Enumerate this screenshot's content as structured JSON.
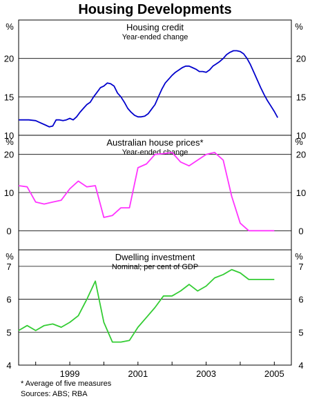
{
  "title": "Housing Developments",
  "footnote": "*   Average of five measures",
  "sources": "Sources: ABS; RBA",
  "x_ticks": [
    "1999",
    "2001",
    "2003",
    "2005"
  ],
  "chart_data": [
    {
      "type": "line",
      "title": "Housing credit",
      "subtitle": "Year-ended change",
      "unit": "%",
      "ylim": [
        10,
        25
      ],
      "y_ticks": [
        10,
        15,
        20
      ],
      "color": "#0000cc",
      "x_range": [
        1997.5,
        2005.5
      ],
      "series": [
        {
          "x": [
            1997.5,
            1997.6,
            1997.8,
            1998.0,
            1998.1,
            1998.3,
            1998.4,
            1998.5,
            1998.6,
            1998.7,
            1998.8,
            1998.9,
            1999.0,
            1999.1,
            1999.2,
            1999.3,
            1999.4,
            1999.5,
            1999.6,
            1999.7,
            1999.8,
            1999.9,
            2000.0,
            2000.1,
            2000.2,
            2000.3,
            2000.4,
            2000.5,
            2000.6,
            2000.7,
            2000.8,
            2000.9,
            2001.0,
            2001.1,
            2001.2,
            2001.3,
            2001.4,
            2001.5,
            2001.6,
            2001.7,
            2001.8,
            2001.9,
            2002.0,
            2002.1,
            2002.2,
            2002.3,
            2002.4,
            2002.5,
            2002.6,
            2002.7,
            2002.8,
            2002.9,
            2003.0,
            2003.1,
            2003.2,
            2003.3,
            2003.4,
            2003.5,
            2003.6,
            2003.7,
            2003.8,
            2003.9,
            2004.0,
            2004.1,
            2004.2,
            2004.3,
            2004.4,
            2004.5,
            2004.6,
            2004.7,
            2004.8,
            2004.9,
            2005.0,
            2005.1
          ],
          "y": [
            12.0,
            12.0,
            12.0,
            11.9,
            11.7,
            11.3,
            11.1,
            11.2,
            12.0,
            12.0,
            11.9,
            12.0,
            12.2,
            12.0,
            12.4,
            13.0,
            13.5,
            14.0,
            14.3,
            15.0,
            15.6,
            16.2,
            16.4,
            16.8,
            16.7,
            16.4,
            15.5,
            15.0,
            14.3,
            13.5,
            13.0,
            12.6,
            12.4,
            12.4,
            12.5,
            12.8,
            13.4,
            14.0,
            15.0,
            16.0,
            16.8,
            17.3,
            17.8,
            18.2,
            18.5,
            18.8,
            19.0,
            19.0,
            18.8,
            18.6,
            18.3,
            18.3,
            18.2,
            18.5,
            19.0,
            19.3,
            19.6,
            20.0,
            20.5,
            20.8,
            21.0,
            21.0,
            20.9,
            20.6,
            20.0,
            19.2,
            18.2,
            17.2,
            16.2,
            15.3,
            14.5,
            13.8,
            13.1,
            12.3
          ]
        }
      ]
    },
    {
      "type": "line",
      "title": "Australian house prices*",
      "subtitle": "Year-ended change",
      "unit": "%",
      "ylim": [
        -5,
        25
      ],
      "y_ticks": [
        0,
        10,
        20
      ],
      "color": "#ff33ff",
      "x_range": [
        1997.5,
        2005.5
      ],
      "series": [
        {
          "x": [
            1997.5,
            1997.75,
            1998.0,
            1998.25,
            1998.5,
            1998.75,
            1999.0,
            1999.25,
            1999.5,
            1999.75,
            2000.0,
            2000.25,
            2000.5,
            2000.75,
            2001.0,
            2001.25,
            2001.5,
            2001.75,
            2002.0,
            2002.25,
            2002.5,
            2002.75,
            2003.0,
            2003.25,
            2003.5,
            2003.75,
            2004.0,
            2004.25,
            2004.5,
            2004.75,
            2005.0
          ],
          "y": [
            11.8,
            11.5,
            7.5,
            7.0,
            7.5,
            8.0,
            11.0,
            13.0,
            11.5,
            11.8,
            3.5,
            4.0,
            6.0,
            6.0,
            16.5,
            17.5,
            20.0,
            20.2,
            20.5,
            18.0,
            17.0,
            18.5,
            20.0,
            20.5,
            18.5,
            9.0,
            2.0,
            0.0,
            0.0,
            0.0,
            0.0
          ]
        }
      ]
    },
    {
      "type": "line",
      "title": "Dwelling investment",
      "subtitle": "Nominal; per cent of GDP",
      "unit": "%",
      "ylim": [
        4,
        7.5
      ],
      "y_ticks": [
        4,
        5,
        6,
        7
      ],
      "color": "#33cc33",
      "x_range": [
        1997.5,
        2005.5
      ],
      "series": [
        {
          "x": [
            1997.5,
            1997.75,
            1998.0,
            1998.25,
            1998.5,
            1998.75,
            1999.0,
            1999.25,
            1999.5,
            1999.75,
            2000.0,
            2000.25,
            2000.5,
            2000.75,
            2001.0,
            2001.25,
            2001.5,
            2001.75,
            2002.0,
            2002.25,
            2002.5,
            2002.75,
            2003.0,
            2003.25,
            2003.5,
            2003.75,
            2004.0,
            2004.25,
            2004.5,
            2004.75,
            2005.0
          ],
          "y": [
            5.05,
            5.2,
            5.05,
            5.2,
            5.25,
            5.15,
            5.3,
            5.5,
            6.0,
            6.55,
            5.3,
            4.7,
            4.7,
            4.75,
            5.15,
            5.45,
            5.75,
            6.1,
            6.1,
            6.25,
            6.45,
            6.25,
            6.4,
            6.65,
            6.75,
            6.9,
            6.8,
            6.6,
            6.6,
            6.6,
            6.6
          ]
        }
      ]
    }
  ]
}
